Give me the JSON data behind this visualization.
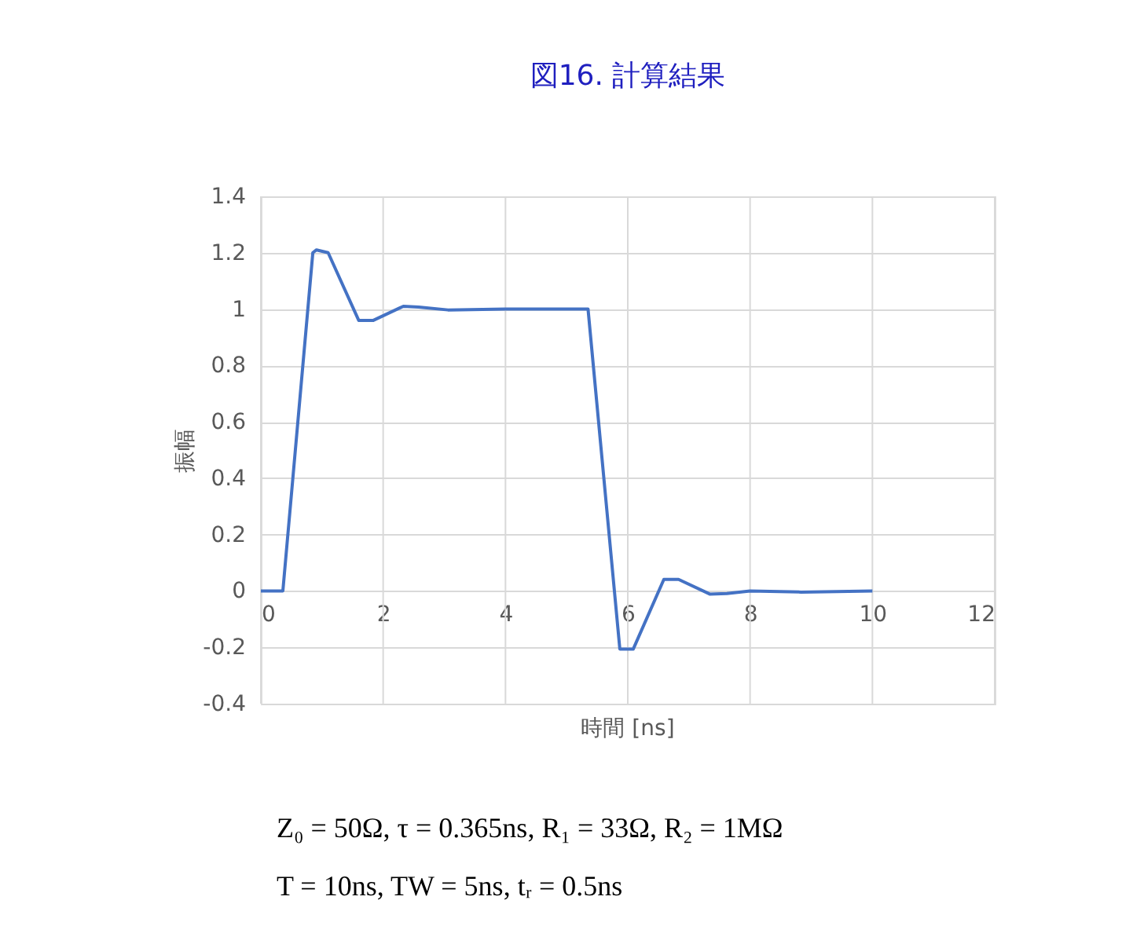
{
  "chart_data": {
    "type": "line",
    "title": "図16. 計算結果",
    "xlabel": "時間 [ns]",
    "ylabel": "振幅",
    "x": [
      0,
      0.36,
      0.85,
      0.91,
      1.1,
      1.6,
      1.84,
      2.33,
      2.58,
      3.06,
      4,
      5.35,
      5.87,
      6.09,
      6.59,
      6.83,
      7.34,
      7.62,
      8,
      8.83,
      10
    ],
    "series": [
      {
        "color": "#4472c4",
        "values": [
          0,
          0,
          1.2,
          1.21,
          1.2,
          0.96,
          0.96,
          1.01,
          1.007,
          0.997,
          1.0,
          1.0,
          -0.206,
          -0.206,
          0.041,
          0.041,
          -0.011,
          -0.009,
          0,
          -0.004,
          0
        ]
      }
    ],
    "xlim": [
      0,
      12
    ],
    "xticks": [
      0,
      2,
      4,
      6,
      8,
      10,
      12
    ],
    "ylim": [
      -0.4,
      1.4
    ],
    "yticks": [
      -0.4,
      -0.2,
      0,
      0.2,
      0.4,
      0.6,
      0.8,
      1,
      1.2,
      1.4
    ],
    "grid": true,
    "legend": false,
    "marker": "none",
    "line_style": "solid",
    "annotations": [
      "Z₀ = 50Ω, τ = 0.365ns, R₁ = 33Ω, R₂ = 1MΩ",
      "T = 10ns, TW = 5ns, tᵣ = 0.5ns"
    ]
  }
}
